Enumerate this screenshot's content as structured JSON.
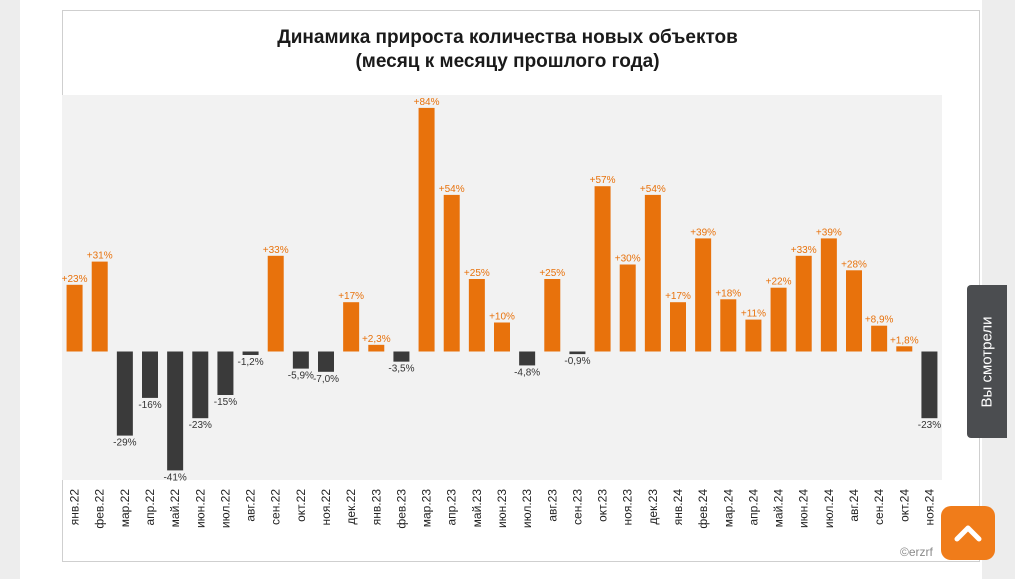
{
  "title_line1": "Динамика прироста количества новых объектов",
  "title_line2": "(месяц к месяцу прошлого года)",
  "watermark": "©erzrf",
  "side_tab_label": "Вы смотрели",
  "colors": {
    "positive": "#e8720c",
    "negative": "#3a3a3a",
    "label_negative": "#333333",
    "plot_bg": "#f2f2f2"
  },
  "chart_data": {
    "type": "bar",
    "title": "Динамика прироста количества новых объектов (месяц к месяцу прошлого года)",
    "xlabel": "",
    "ylabel": "",
    "ylim": [
      -50,
      92
    ],
    "categories": [
      "янв.22",
      "фев.22",
      "мар.22",
      "апр.22",
      "май.22",
      "июн.22",
      "июл.22",
      "авг.22",
      "сен.22",
      "окт.22",
      "ноя.22",
      "дек.22",
      "янв.23",
      "фев.23",
      "мар.23",
      "апр.23",
      "май.23",
      "июн.23",
      "июл.23",
      "авг.23",
      "сен.23",
      "окт.23",
      "ноя.23",
      "дек.23",
      "янв.24",
      "фев.24",
      "мар.24",
      "апр.24",
      "май.24",
      "июн.24",
      "июл.24",
      "авг.24",
      "сен.24",
      "окт.24",
      "ноя.24"
    ],
    "values": [
      23,
      31,
      -29,
      -16,
      -41,
      -23,
      -15,
      -1.2,
      33,
      -5.9,
      -7.0,
      17,
      2.3,
      -3.5,
      84,
      54,
      25,
      10,
      -4.8,
      25,
      -0.9,
      57,
      30,
      54,
      17,
      39,
      18,
      11,
      22,
      33,
      39,
      28,
      8.9,
      1.8,
      -23
    ],
    "labels": [
      "+23%",
      "+31%",
      "-29%",
      "-16%",
      "-41%",
      "-23%",
      "-15%",
      "-1,2%",
      "+33%",
      "-5,9%",
      "-7,0%",
      "+17%",
      "+2,3%",
      "-3,5%",
      "+84%",
      "+54%",
      "+25%",
      "+10%",
      "-4,8%",
      "+25%",
      "-0,9%",
      "+57%",
      "+30%",
      "+54%",
      "+17%",
      "+39%",
      "+18%",
      "+11%",
      "+22%",
      "+33%",
      "+39%",
      "+28%",
      "+8,9%",
      "+1,8%",
      "-23%"
    ]
  }
}
